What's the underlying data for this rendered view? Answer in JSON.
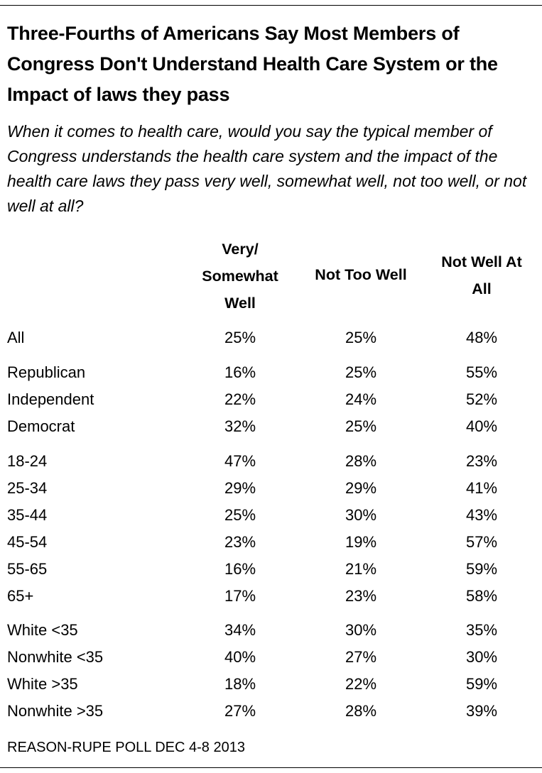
{
  "title": "Three-Fourths of Americans Say Most Members of Congress Don't Understand Health Care System or the Impact of laws they pass",
  "subtitle": "When it comes to health care, would you say the typical member of Congress understands the health care system and the impact of the health care laws they pass very well, somewhat well, not too well, or not well at all?",
  "source": "REASON-RUPE POLL DEC 4-8 2013",
  "chart_data": {
    "type": "table",
    "columns": [
      "Very/\nSomewhat\nWell",
      "Not Too Well",
      "Not Well At\nAll"
    ],
    "rows": [
      {
        "label": "All",
        "values": [
          "25%",
          "25%",
          "48%"
        ]
      },
      {
        "label": "Republican",
        "values": [
          "16%",
          "25%",
          "55%"
        ]
      },
      {
        "label": "Independent",
        "values": [
          "22%",
          "24%",
          "52%"
        ]
      },
      {
        "label": "Democrat",
        "values": [
          "32%",
          "25%",
          "40%"
        ]
      },
      {
        "label": "18-24",
        "values": [
          "47%",
          "28%",
          "23%"
        ]
      },
      {
        "label": "25-34",
        "values": [
          "29%",
          "29%",
          "41%"
        ]
      },
      {
        "label": "35-44",
        "values": [
          "25%",
          "30%",
          "43%"
        ]
      },
      {
        "label": "45-54",
        "values": [
          "23%",
          "19%",
          "57%"
        ]
      },
      {
        "label": "55-65",
        "values": [
          "16%",
          "21%",
          "59%"
        ]
      },
      {
        "label": "65+",
        "values": [
          "17%",
          "23%",
          "58%"
        ]
      },
      {
        "label": "White <35",
        "values": [
          "34%",
          "30%",
          "35%"
        ]
      },
      {
        "label": "Nonwhite <35",
        "values": [
          "40%",
          "27%",
          "30%"
        ]
      },
      {
        "label": "White >35",
        "values": [
          "18%",
          "22%",
          "59%"
        ]
      },
      {
        "label": "Nonwhite >35",
        "values": [
          "27%",
          "28%",
          "39%"
        ]
      }
    ]
  }
}
